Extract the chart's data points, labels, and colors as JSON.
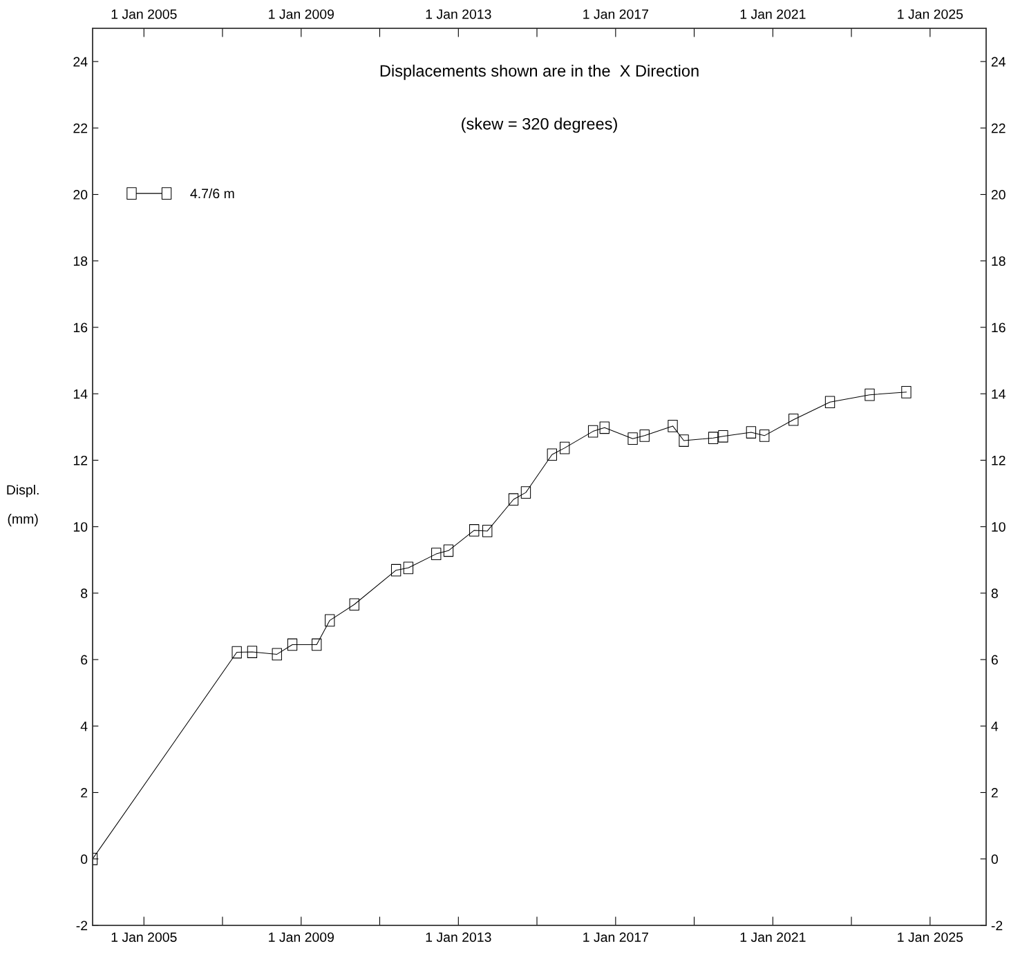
{
  "chart_data": {
    "type": "line",
    "title": "Displacements shown are in the  X Direction",
    "subtitle": "(skew = 320 degrees)",
    "ylabel": "Displ.\n(mm)",
    "x": [
      "2003-09-12",
      "2007-05-14",
      "2007-10-04",
      "2008-05-21",
      "2008-10-11",
      "2009-05-25",
      "2009-09-24",
      "2010-05-10",
      "2011-06-02",
      "2011-09-24",
      "2012-06-09",
      "2012-10-01",
      "2013-05-28",
      "2013-09-27",
      "2014-05-28",
      "2014-09-20",
      "2015-05-21",
      "2015-09-16",
      "2016-06-05",
      "2016-09-20",
      "2017-06-09",
      "2017-09-27",
      "2018-06-16",
      "2018-09-27",
      "2019-06-27",
      "2019-09-27",
      "2020-06-13",
      "2020-10-15",
      "2021-07-12",
      "2022-06-16",
      "2023-06-20",
      "2024-05-25"
    ],
    "series": [
      {
        "name": "4.7/6 m",
        "color": "#000000",
        "values": [
          0.0,
          6.22,
          6.23,
          6.16,
          6.45,
          6.45,
          7.18,
          7.66,
          8.69,
          8.76,
          9.18,
          9.28,
          9.89,
          9.87,
          10.82,
          11.03,
          12.17,
          12.37,
          12.87,
          12.98,
          12.65,
          12.74,
          13.03,
          12.59,
          12.67,
          12.72,
          12.84,
          12.74,
          13.22,
          13.75,
          13.97,
          14.05
        ]
      }
    ],
    "xlim": [
      "2003-09-12",
      "2026-06-06"
    ],
    "xticks": [
      {
        "value": "2005-01-01",
        "label": "1 Jan 2005"
      },
      {
        "value": "2007-01-01",
        "label": null
      },
      {
        "value": "2009-01-01",
        "label": "1 Jan 2009"
      },
      {
        "value": "2011-01-01",
        "label": null
      },
      {
        "value": "2013-01-01",
        "label": "1 Jan 2013"
      },
      {
        "value": "2015-01-01",
        "label": null
      },
      {
        "value": "2017-01-01",
        "label": "1 Jan 2017"
      },
      {
        "value": "2019-01-01",
        "label": null
      },
      {
        "value": "2021-01-01",
        "label": "1 Jan 2021"
      },
      {
        "value": "2023-01-01",
        "label": null
      },
      {
        "value": "2025-01-01",
        "label": "1 Jan 2025"
      }
    ],
    "x2lim": [
      "2003-09-12",
      "2026-06-06"
    ],
    "x2ticks": [
      {
        "value": "2005-01-01",
        "label": "1 Jan 2005"
      },
      {
        "value": "2007-01-01",
        "label": null
      },
      {
        "value": "2009-01-01",
        "label": "1 Jan 2009"
      },
      {
        "value": "2011-01-01",
        "label": null
      },
      {
        "value": "2013-01-01",
        "label": "1 Jan 2013"
      },
      {
        "value": "2015-01-01",
        "label": null
      },
      {
        "value": "2017-01-01",
        "label": "1 Jan 2017"
      },
      {
        "value": "2019-01-01",
        "label": null
      },
      {
        "value": "2021-01-01",
        "label": "1 Jan 2021"
      },
      {
        "value": "2023-01-01",
        "label": null
      },
      {
        "value": "2025-01-01",
        "label": "1 Jan 2025"
      }
    ],
    "ylim": [
      -2,
      25
    ],
    "yticks": [
      -2,
      0,
      2,
      4,
      6,
      8,
      10,
      12,
      14,
      16,
      18,
      20,
      22,
      24
    ],
    "y2lim": [
      -2,
      25
    ],
    "y2ticks": [
      -2,
      0,
      2,
      4,
      6,
      8,
      10,
      12,
      14,
      16,
      18,
      20,
      22,
      24
    ],
    "marker": "square",
    "line_style": "solid",
    "legend": "top left"
  }
}
